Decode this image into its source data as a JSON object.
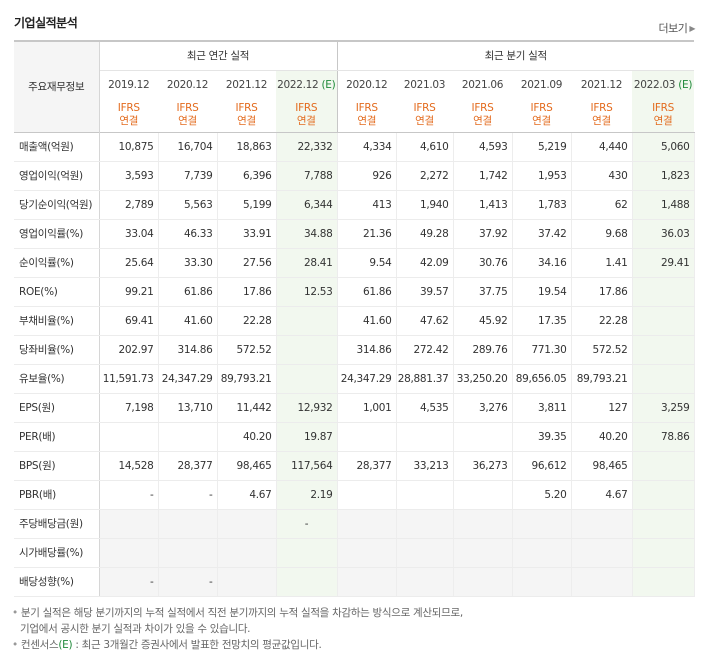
{
  "title": "기업실적분석",
  "more_label": "더보기",
  "corner_label": "주요재무정보",
  "groups": {
    "annual": "최근 연간 실적",
    "quarterly": "최근 분기 실적"
  },
  "periods": [
    {
      "label": "2019.12",
      "est": ""
    },
    {
      "label": "2020.12",
      "est": ""
    },
    {
      "label": "2021.12",
      "est": ""
    },
    {
      "label": "2022.12",
      "est": "(E)"
    },
    {
      "label": "2020.12",
      "est": ""
    },
    {
      "label": "2021.03",
      "est": ""
    },
    {
      "label": "2021.06",
      "est": ""
    },
    {
      "label": "2021.09",
      "est": ""
    },
    {
      "label": "2021.12",
      "est": ""
    },
    {
      "label": "2022.03",
      "est": "(E)"
    }
  ],
  "ifrs": {
    "line1": "IFRS",
    "line2": "연결"
  },
  "rows": [
    {
      "label": "매출액(억원)",
      "values": [
        "10,875",
        "16,704",
        "18,863",
        "22,332",
        "4,334",
        "4,610",
        "4,593",
        "5,219",
        "4,440",
        "5,060"
      ]
    },
    {
      "label": "영업이익(억원)",
      "values": [
        "3,593",
        "7,739",
        "6,396",
        "7,788",
        "926",
        "2,272",
        "1,742",
        "1,953",
        "430",
        "1,823"
      ]
    },
    {
      "label": "당기순이익(억원)",
      "values": [
        "2,789",
        "5,563",
        "5,199",
        "6,344",
        "413",
        "1,940",
        "1,413",
        "1,783",
        "62",
        "1,488"
      ]
    },
    {
      "label": "영업이익률(%)",
      "values": [
        "33.04",
        "46.33",
        "33.91",
        "34.88",
        "21.36",
        "49.28",
        "37.92",
        "37.42",
        "9.68",
        "36.03"
      ]
    },
    {
      "label": "순이익률(%)",
      "values": [
        "25.64",
        "33.30",
        "27.56",
        "28.41",
        "9.54",
        "42.09",
        "30.76",
        "34.16",
        "1.41",
        "29.41"
      ]
    },
    {
      "label": "ROE(%)",
      "values": [
        "99.21",
        "61.86",
        "17.86",
        "12.53",
        "61.86",
        "39.57",
        "37.75",
        "19.54",
        "17.86",
        ""
      ]
    },
    {
      "label": "부채비율(%)",
      "values": [
        "69.41",
        "41.60",
        "22.28",
        "",
        "41.60",
        "47.62",
        "45.92",
        "17.35",
        "22.28",
        ""
      ]
    },
    {
      "label": "당좌비율(%)",
      "values": [
        "202.97",
        "314.86",
        "572.52",
        "",
        "314.86",
        "272.42",
        "289.76",
        "771.30",
        "572.52",
        ""
      ]
    },
    {
      "label": "유보율(%)",
      "values": [
        "11,591.73",
        "24,347.29",
        "89,793.21",
        "",
        "24,347.29",
        "28,881.37",
        "33,250.20",
        "89,656.05",
        "89,793.21",
        ""
      ]
    },
    {
      "label": "EPS(원)",
      "values": [
        "7,198",
        "13,710",
        "11,442",
        "12,932",
        "1,001",
        "4,535",
        "3,276",
        "3,811",
        "127",
        "3,259"
      ]
    },
    {
      "label": "PER(배)",
      "values": [
        "",
        "",
        "40.20",
        "19.87",
        "",
        "",
        "",
        "39.35",
        "40.20",
        "78.86"
      ]
    },
    {
      "label": "BPS(원)",
      "values": [
        "14,528",
        "28,377",
        "98,465",
        "117,564",
        "28,377",
        "33,213",
        "36,273",
        "96,612",
        "98,465",
        ""
      ]
    },
    {
      "label": "PBR(배)",
      "values": [
        "-",
        "-",
        "4.67",
        "2.19",
        "",
        "",
        "",
        "5.20",
        "4.67",
        ""
      ]
    },
    {
      "label": "주당배당금(원)",
      "values": [
        "",
        "",
        "",
        "-",
        "",
        "",
        "",
        "",
        "",
        ""
      ]
    },
    {
      "label": "시가배당률(%)",
      "values": [
        "",
        "",
        "",
        "",
        "",
        "",
        "",
        "",
        "",
        ""
      ]
    },
    {
      "label": "배당성향(%)",
      "values": [
        "-",
        "-",
        "",
        "",
        "",
        "",
        "",
        "",
        "",
        ""
      ]
    }
  ],
  "notes": {
    "line1": "분기 실적은 해당 분기까지의 누적 실적에서 직전 분기까지의 누적 실적을 차감하는 방식으로 계산되므로,",
    "line2": "기업에서 공시한 분기 실적과 차이가 있을 수 있습니다.",
    "line3_prefix": "컨센서스",
    "line3_e": "(E)",
    "line3_rest": " : 최근 3개월간 증권사에서 발표한 전망치의 평균값입니다."
  }
}
